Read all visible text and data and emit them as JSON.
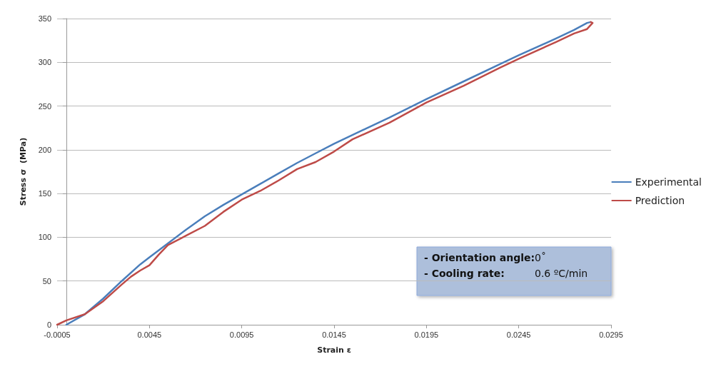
{
  "chart_data": {
    "type": "line",
    "xlabel": "Strain ε",
    "ylabel": "Stress σ  (MPa)",
    "xlim": [
      -0.0005,
      0.0295
    ],
    "xticks": [
      -0.0005,
      0.0045,
      0.0095,
      0.0145,
      0.0195,
      0.0245,
      0.0295
    ],
    "ylim": [
      0,
      350
    ],
    "yticks": [
      0,
      50,
      100,
      150,
      200,
      250,
      300,
      350
    ],
    "grid": "y",
    "legend": "right",
    "marker": "none",
    "line_style": "solid",
    "annotations": [
      "- Orientation angle:",
      "0˚",
      "- Cooling rate:",
      "0.6 ºC/min"
    ],
    "series": [
      {
        "name": "Experimental",
        "color": "#4a7ebb",
        "x": [
          0.0,
          0.001,
          0.002,
          0.003,
          0.004,
          0.0045,
          0.0055,
          0.0065,
          0.0075,
          0.0085,
          0.0095,
          0.0105,
          0.0115,
          0.0125,
          0.0135,
          0.0145,
          0.016,
          0.0175,
          0.0195,
          0.0215,
          0.0235,
          0.0245,
          0.0265,
          0.0275,
          0.0282,
          0.0284
        ],
        "values": [
          0,
          12,
          30,
          50,
          69,
          77,
          93,
          109,
          124,
          137,
          149,
          161,
          173,
          185,
          196,
          207,
          222,
          237,
          258,
          278,
          298,
          308,
          327,
          337,
          345,
          346
        ]
      },
      {
        "name": "Prediction",
        "color": "#be4b48",
        "x": [
          -0.0005,
          0.0,
          0.001,
          0.002,
          0.003,
          0.0035,
          0.004,
          0.0045,
          0.005,
          0.0055,
          0.0065,
          0.0075,
          0.0085,
          0.0095,
          0.0105,
          0.0115,
          0.0125,
          0.0135,
          0.0145,
          0.0155,
          0.0175,
          0.0195,
          0.0215,
          0.0235,
          0.0245,
          0.0265,
          0.0275,
          0.0282,
          0.0285,
          0.0284
        ],
        "values": [
          0,
          5,
          12,
          27,
          46,
          55,
          62,
          68,
          80,
          91,
          102,
          113,
          129,
          143,
          153,
          165,
          178,
          186,
          198,
          212,
          231,
          254,
          273,
          294,
          304,
          323,
          333,
          338,
          345,
          346
        ]
      }
    ]
  }
}
